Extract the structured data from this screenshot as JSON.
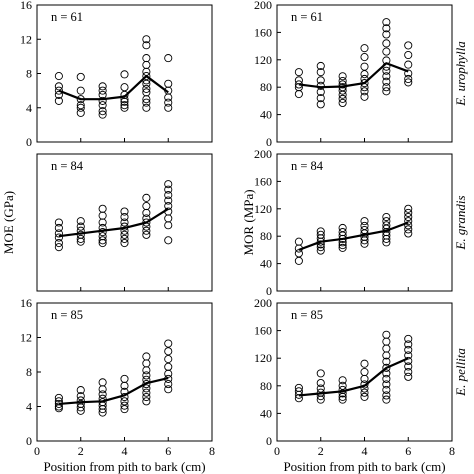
{
  "chart_data": [
    {
      "type": "scatter",
      "species": "E. urophylla",
      "property": "MOE",
      "n_label": "n = 61",
      "xlim": [
        0,
        8
      ],
      "ylim": [
        0,
        16
      ],
      "x_ticks": [
        "0",
        "2",
        "4",
        "6",
        "8"
      ],
      "y_ticks": [
        "0",
        "4",
        "8",
        "12",
        "16"
      ],
      "show_x_ticklabels": false,
      "ylabel": "",
      "xlabel": "",
      "mean_line": {
        "x": [
          1,
          2,
          3,
          4,
          5,
          6
        ],
        "y": [
          6.0,
          5.0,
          5.0,
          5.3,
          7.7,
          5.8
        ]
      },
      "points": [
        {
          "x": 1,
          "y": [
            7.7,
            6.5,
            6.0,
            5.5,
            4.8
          ]
        },
        {
          "x": 2,
          "y": [
            7.6,
            6.0,
            5.0,
            4.3,
            4.0,
            3.4
          ]
        },
        {
          "x": 3,
          "y": [
            6.5,
            6.0,
            5.5,
            4.8,
            4.3,
            3.6,
            3.2
          ]
        },
        {
          "x": 4,
          "y": [
            7.9,
            6.4,
            5.5,
            5.0,
            4.7,
            4.3,
            4.0
          ]
        },
        {
          "x": 5,
          "y": [
            12.0,
            11.3,
            9.8,
            9.0,
            8.2,
            7.7,
            7.2,
            6.8,
            6.2,
            5.8,
            5.0,
            4.6,
            4.0
          ]
        },
        {
          "x": 6,
          "y": [
            9.8,
            6.8,
            6.0,
            5.2,
            4.6,
            4.0
          ]
        }
      ]
    },
    {
      "type": "scatter",
      "species": "E. urophylla",
      "property": "MOR",
      "n_label": "n = 61",
      "xlim": [
        0,
        8
      ],
      "ylim": [
        0,
        200
      ],
      "x_ticks": [
        "0",
        "2",
        "4",
        "6",
        "8"
      ],
      "y_ticks": [
        "0",
        "40",
        "80",
        "120",
        "160",
        "200"
      ],
      "show_x_ticklabels": false,
      "ylabel": "",
      "xlabel": "",
      "mean_line": {
        "x": [
          1,
          2,
          3,
          4,
          5,
          6
        ],
        "y": [
          84,
          80,
          81,
          86,
          115,
          103
        ]
      },
      "points": [
        {
          "x": 1,
          "y": [
            102,
            90,
            84,
            80,
            70
          ]
        },
        {
          "x": 2,
          "y": [
            111,
            102,
            90,
            82,
            73,
            64,
            55
          ]
        },
        {
          "x": 3,
          "y": [
            96,
            89,
            84,
            80,
            75,
            69,
            63,
            57
          ]
        },
        {
          "x": 4,
          "y": [
            137,
            124,
            110,
            99,
            92,
            86,
            80,
            74,
            66
          ]
        },
        {
          "x": 5,
          "y": [
            175,
            166,
            157,
            144,
            132,
            119,
            110,
            104,
            96,
            88,
            80,
            74
          ]
        },
        {
          "x": 6,
          "y": [
            141,
            127,
            113,
            100,
            92,
            87
          ]
        }
      ]
    },
    {
      "type": "scatter",
      "species": "E. grandis",
      "property": "MOE",
      "n_label": "n = 84",
      "xlim": [
        0,
        8
      ],
      "ylim": [
        0,
        10
      ],
      "x_ticks": [
        "0",
        "2",
        "4",
        "6",
        "8"
      ],
      "y_ticks": [],
      "show_x_ticklabels": false,
      "ylabel": "MOE (GPa)",
      "xlabel": "",
      "mean_line": {
        "x": [
          1,
          2,
          3,
          4,
          5,
          6
        ],
        "y": [
          4.0,
          4.2,
          4.4,
          4.6,
          5.0,
          6.0
        ]
      },
      "points": [
        {
          "x": 1,
          "y": [
            5.0,
            4.6,
            4.2,
            3.9,
            3.5,
            3.2
          ]
        },
        {
          "x": 2,
          "y": [
            5.1,
            4.7,
            4.4,
            4.1,
            3.8,
            3.6
          ]
        },
        {
          "x": 3,
          "y": [
            6.0,
            5.5,
            5.0,
            4.6,
            4.3,
            4.0,
            3.7,
            3.5
          ]
        },
        {
          "x": 4,
          "y": [
            5.8,
            5.4,
            5.0,
            4.7,
            4.4,
            4.1,
            3.8,
            3.5
          ]
        },
        {
          "x": 5,
          "y": [
            6.8,
            6.2,
            5.7,
            5.3,
            5.0,
            4.7,
            4.4,
            4.1
          ]
        },
        {
          "x": 6,
          "y": [
            7.8,
            7.4,
            7.0,
            6.6,
            6.2,
            5.8,
            5.3,
            4.8,
            3.7
          ]
        }
      ]
    },
    {
      "type": "scatter",
      "species": "E. grandis",
      "property": "MOR",
      "n_label": "n = 84",
      "xlim": [
        0,
        8
      ],
      "ylim": [
        0,
        200
      ],
      "x_ticks": [
        "0",
        "2",
        "4",
        "6",
        "8"
      ],
      "y_ticks": [
        "0",
        "40",
        "80",
        "120",
        "160",
        "200"
      ],
      "show_x_ticklabels": false,
      "ylabel": "MOR (MPa)",
      "xlabel": "",
      "mean_line": {
        "x": [
          1,
          2,
          3,
          4,
          5,
          6
        ],
        "y": [
          60,
          72,
          76,
          82,
          88,
          100
        ]
      },
      "points": [
        {
          "x": 1,
          "y": [
            72,
            62,
            55,
            44
          ]
        },
        {
          "x": 2,
          "y": [
            87,
            82,
            77,
            72,
            68,
            64,
            59
          ]
        },
        {
          "x": 3,
          "y": [
            92,
            86,
            81,
            76,
            71,
            67,
            63
          ]
        },
        {
          "x": 4,
          "y": [
            102,
            95,
            89,
            84,
            79,
            74,
            69
          ]
        },
        {
          "x": 5,
          "y": [
            108,
            102,
            96,
            91,
            86,
            81,
            76,
            71
          ]
        },
        {
          "x": 6,
          "y": [
            120,
            114,
            108,
            102,
            96,
            90,
            84
          ]
        }
      ]
    },
    {
      "type": "scatter",
      "species": "E. pellita",
      "property": "MOE",
      "n_label": "n = 85",
      "xlim": [
        0,
        8
      ],
      "ylim": [
        0,
        16
      ],
      "x_ticks": [
        "0",
        "2",
        "4",
        "6",
        "8"
      ],
      "y_ticks": [
        "0",
        "4",
        "8",
        "12",
        "16"
      ],
      "show_x_ticklabels": true,
      "ylabel": "",
      "xlabel": "Position from pith to bark (cm)",
      "mean_line": {
        "x": [
          1,
          2,
          3,
          4,
          5,
          6
        ],
        "y": [
          4.3,
          4.5,
          4.6,
          5.3,
          6.7,
          7.3
        ]
      },
      "points": [
        {
          "x": 1,
          "y": [
            5.0,
            4.6,
            4.3,
            4.0,
            3.8
          ]
        },
        {
          "x": 2,
          "y": [
            5.9,
            5.2,
            4.7,
            4.3,
            3.9,
            3.5
          ]
        },
        {
          "x": 3,
          "y": [
            6.8,
            6.0,
            5.4,
            4.9,
            4.5,
            4.1,
            3.7,
            3.3
          ]
        },
        {
          "x": 4,
          "y": [
            7.2,
            6.4,
            5.7,
            5.1,
            4.6,
            4.1,
            3.7
          ]
        },
        {
          "x": 5,
          "y": [
            9.8,
            9.0,
            8.2,
            7.6,
            7.1,
            6.6,
            6.1,
            5.6,
            5.1,
            4.6
          ]
        },
        {
          "x": 6,
          "y": [
            11.3,
            10.4,
            9.5,
            8.6,
            7.8,
            7.2,
            6.6,
            6.0
          ]
        }
      ]
    },
    {
      "type": "scatter",
      "species": "E. pellita",
      "property": "MOR",
      "n_label": "n = 85",
      "xlim": [
        0,
        8
      ],
      "ylim": [
        0,
        200
      ],
      "x_ticks": [
        "0",
        "2",
        "4",
        "6",
        "8"
      ],
      "y_ticks": [
        "0",
        "40",
        "80",
        "120",
        "160",
        "200"
      ],
      "show_x_ticklabels": true,
      "ylabel": "",
      "xlabel": "Position from pith to bark (cm)",
      "mean_line": {
        "x": [
          1,
          2,
          3,
          4,
          5,
          6
        ],
        "y": [
          66,
          69,
          72,
          80,
          106,
          120
        ]
      },
      "points": [
        {
          "x": 1,
          "y": [
            77,
            72,
            67,
            62
          ]
        },
        {
          "x": 2,
          "y": [
            98,
            84,
            76,
            70,
            65,
            60
          ]
        },
        {
          "x": 3,
          "y": [
            88,
            80,
            74,
            69,
            64,
            60
          ]
        },
        {
          "x": 4,
          "y": [
            112,
            100,
            90,
            82,
            76,
            70,
            64
          ]
        },
        {
          "x": 5,
          "y": [
            154,
            144,
            134,
            124,
            115,
            106,
            98,
            90,
            82,
            74,
            66,
            60
          ]
        },
        {
          "x": 6,
          "y": [
            148,
            140,
            132,
            124,
            116,
            108,
            100,
            93
          ]
        }
      ]
    }
  ]
}
